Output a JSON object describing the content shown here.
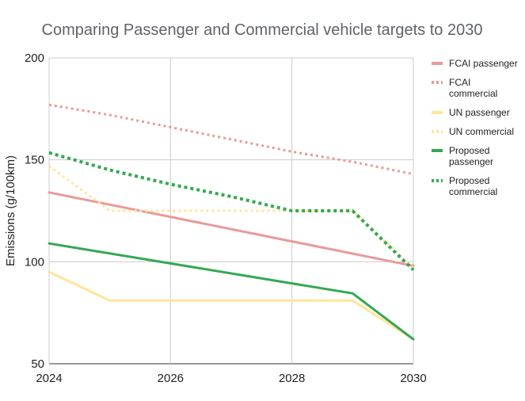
{
  "chart_data": {
    "type": "line",
    "title": "Comparing Passenger and Commercial vehicle targets to 2030",
    "xlabel": "",
    "ylabel": "Emissions (g/100km)",
    "xlim": [
      2024,
      2030
    ],
    "ylim": [
      50,
      200
    ],
    "x_ticks": [
      "2024",
      "2026",
      "2028",
      "2030"
    ],
    "y_ticks": [
      "50",
      "100",
      "150",
      "200"
    ],
    "grid": true,
    "legend_position": "right",
    "series": [
      {
        "name": "FCAI passenger",
        "color": "#ea9999",
        "style": "solid",
        "points": [
          [
            2024,
            134
          ],
          [
            2030,
            98
          ]
        ]
      },
      {
        "name": "FCAI commercial",
        "color": "#ea9999",
        "style": "dotted",
        "points": [
          [
            2024,
            177
          ],
          [
            2025,
            172
          ],
          [
            2026,
            166
          ],
          [
            2027,
            160
          ],
          [
            2028,
            154
          ],
          [
            2029,
            149
          ],
          [
            2030,
            143
          ]
        ]
      },
      {
        "name": "UN passenger",
        "color": "#ffe599",
        "style": "solid",
        "points": [
          [
            2024,
            95
          ],
          [
            2025,
            81
          ],
          [
            2026,
            81
          ],
          [
            2027,
            81
          ],
          [
            2028,
            81
          ],
          [
            2029,
            81
          ],
          [
            2030,
            62
          ]
        ]
      },
      {
        "name": "UN commercial",
        "color": "#ffe599",
        "style": "dotted",
        "points": [
          [
            2024,
            147
          ],
          [
            2025,
            125
          ],
          [
            2026,
            125
          ],
          [
            2027,
            125
          ],
          [
            2028,
            125
          ],
          [
            2029,
            125
          ],
          [
            2030,
            97
          ]
        ]
      },
      {
        "name": "Proposed passenger",
        "color": "#34a853",
        "style": "solid",
        "points": [
          [
            2024,
            109
          ],
          [
            2029,
            84.5
          ],
          [
            2030,
            62
          ]
        ]
      },
      {
        "name": "Proposed commercial",
        "color": "#34a853",
        "style": "dotted",
        "points": [
          [
            2024,
            153.5
          ],
          [
            2025,
            145
          ],
          [
            2026,
            138
          ],
          [
            2027,
            132
          ],
          [
            2028,
            125
          ],
          [
            2029,
            125
          ],
          [
            2030,
            96
          ]
        ]
      }
    ]
  }
}
